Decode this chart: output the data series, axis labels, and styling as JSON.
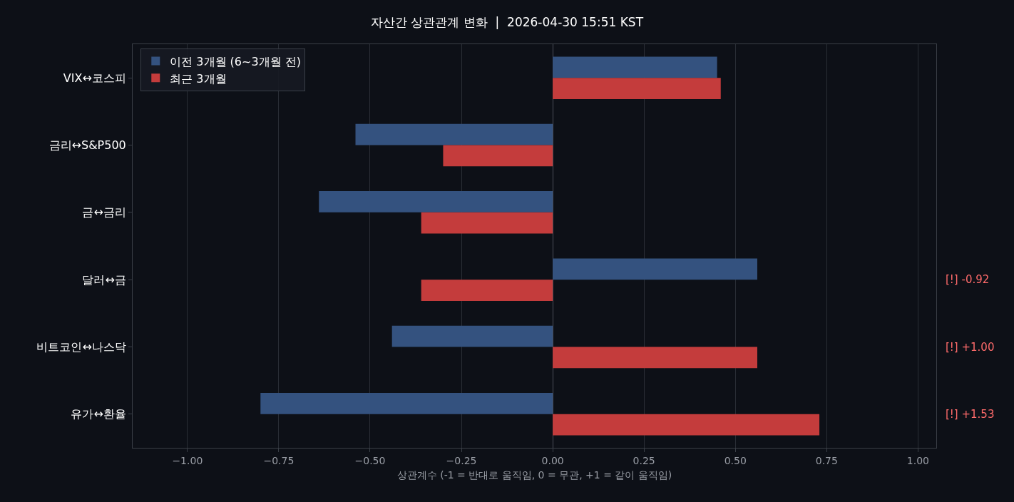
{
  "chart_data": {
    "type": "bar",
    "orientation": "horizontal",
    "title": "자산간 상관관계 변화  |  2026-04-30 15:51 KST",
    "xlabel": "상관계수 (-1 = 반대로 움직임, 0 = 무관, +1 = 같이 움직임)",
    "categories": [
      "VIX↔코스피",
      "금리↔S&P500",
      "금↔금리",
      "달러↔금",
      "비트코인↔나스닥",
      "유가↔환율"
    ],
    "series": [
      {
        "name": "이전 3개월 (6~3개월 전)",
        "color": "#34527f",
        "values": [
          0.45,
          -0.54,
          -0.64,
          0.56,
          -0.44,
          -0.8
        ]
      },
      {
        "name": "최근 3개월",
        "color": "#c43c3c",
        "values": [
          0.46,
          -0.3,
          -0.36,
          -0.36,
          0.56,
          0.73
        ]
      }
    ],
    "xlim": [
      -1.15,
      1.05
    ],
    "xticks": [
      {
        "value": -1,
        "label": "−1.00"
      },
      {
        "value": -0.75,
        "label": "−0.75"
      },
      {
        "value": -0.5,
        "label": "−0.50"
      },
      {
        "value": -0.25,
        "label": "−0.25"
      },
      {
        "value": 0,
        "label": "0.00"
      },
      {
        "value": 0.25,
        "label": "0.25"
      },
      {
        "value": 0.5,
        "label": "0.50"
      },
      {
        "value": 0.75,
        "label": "0.75"
      },
      {
        "value": 1,
        "label": "1.00"
      }
    ],
    "annotations": [
      "[!] -0.92",
      "[!] +1.00",
      "[!] +1.53"
    ],
    "grid": "x",
    "legend": "top left"
  }
}
